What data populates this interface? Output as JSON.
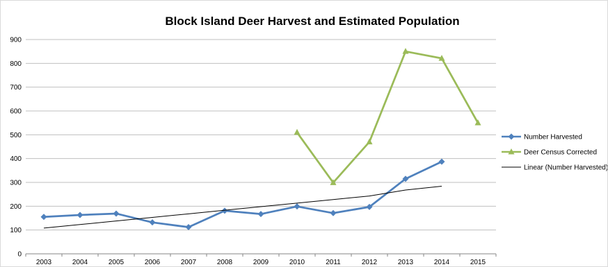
{
  "chart_data": {
    "type": "line",
    "title": "Block Island Deer Harvest and Estimated Population",
    "xlabel": "",
    "ylabel": "",
    "categories": [
      "2003",
      "2004",
      "2005",
      "2006",
      "2007",
      "2008",
      "2009",
      "2010",
      "2011",
      "2012",
      "2013",
      "2014",
      "2015"
    ],
    "ylim": [
      0,
      900
    ],
    "yticks": [
      "0",
      "100",
      "200",
      "300",
      "400",
      "500",
      "600",
      "700",
      "800",
      "900"
    ],
    "grid": "horizontal",
    "legend_position": "right",
    "series": [
      {
        "name": "Number Harvested",
        "color": "#4f81bd",
        "marker": "diamond",
        "values": [
          155,
          163,
          169,
          132,
          112,
          181,
          167,
          199,
          171,
          197,
          315,
          387,
          null
        ]
      },
      {
        "name": "Deer Census Corrected",
        "color": "#9bbb59",
        "marker": "triangle",
        "values": [
          null,
          null,
          null,
          null,
          null,
          null,
          null,
          510,
          299,
          470,
          850,
          821,
          550
        ]
      },
      {
        "name": "Linear (Number Harvested)",
        "color": "#000000",
        "marker": "none",
        "trendline_of": "Number Harvested",
        "values": [
          108,
          123,
          138,
          153,
          168,
          183,
          198,
          213,
          228,
          243,
          268,
          284,
          null
        ]
      }
    ]
  }
}
